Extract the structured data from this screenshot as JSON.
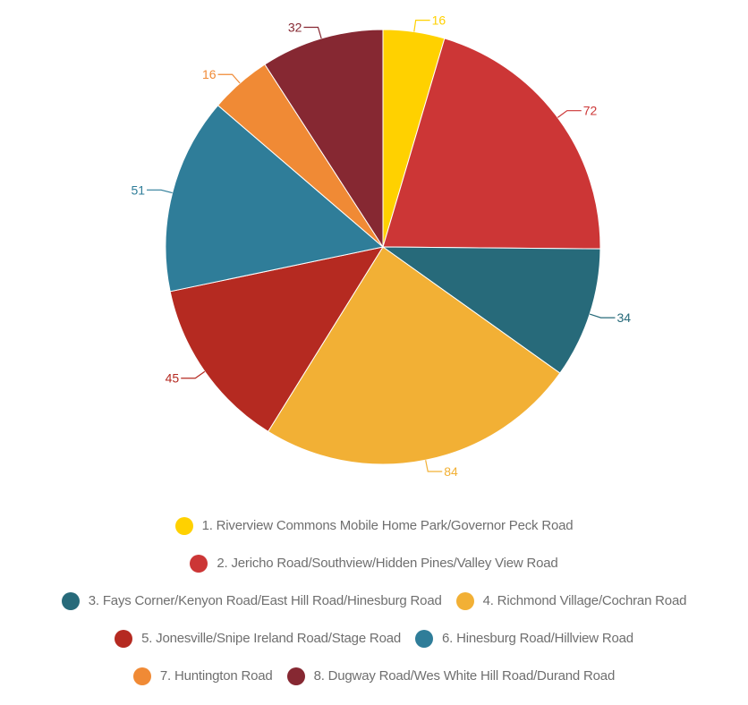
{
  "chart_data": {
    "type": "pie",
    "slices": [
      {
        "label": "1. Riverview Commons Mobile Home Park/Governor Peck Road",
        "value": 16,
        "color": "#ffd100"
      },
      {
        "label": "2. Jericho Road/Southview/Hidden Pines/Valley View Road",
        "value": 72,
        "color": "#cc3636"
      },
      {
        "label": "3. Fays Corner/Kenyon Road/East Hill Road/Hinesburg Road",
        "value": 34,
        "color": "#276a7a"
      },
      {
        "label": "4. Richmond Village/Cochran Road",
        "value": 84,
        "color": "#f2b035"
      },
      {
        "label": "5. Jonesville/Snipe Ireland Road/Stage Road",
        "value": 45,
        "color": "#b52a21"
      },
      {
        "label": "6. Hinesburg Road/Hillview Road",
        "value": 51,
        "color": "#2f7d99"
      },
      {
        "label": "7. Huntington Road",
        "value": 16,
        "color": "#f08a35"
      },
      {
        "label": "8. Dugway Road/Wes White Hill Road/Durand Road",
        "value": 32,
        "color": "#862832"
      }
    ],
    "legend_position": "bottom",
    "data_labels": true
  }
}
